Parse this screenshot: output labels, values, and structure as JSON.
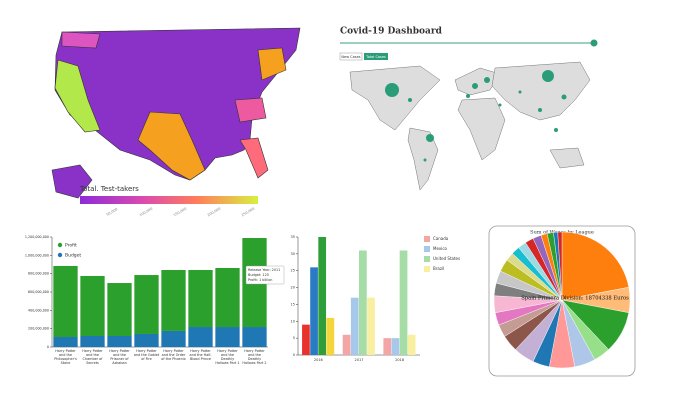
{
  "us_map": {
    "legend_title": "Total. Test-takers",
    "legend_ticks": [
      "50,000",
      "100,000",
      "150,000",
      "200,000",
      "250,000"
    ]
  },
  "covid": {
    "title": "Covid-19 Dashboard",
    "buttons": [
      "New Cases",
      "Total Cases"
    ]
  },
  "chart_data": [
    {
      "type": "stacked_bar",
      "categories": [
        "Harry Potter and the Philosopher's Stone",
        "Harry Potter and the Chamber of Secrets",
        "Harry Potter and the Prisoner of Azkaban",
        "Harry Potter and the Goblet of Fire",
        "Harry Potter and the Order of the Phoenix",
        "Harry Potter and the Half-Blood Prince",
        "Harry Potter and the Deathly Hallows Part 1",
        "Harry Potter and the Deathly Hallows Part 2"
      ],
      "series": [
        {
          "name": "Budget",
          "color": "#1f77b4",
          "values": [
            109000000,
            120000000,
            120000000,
            142000000,
            175000000,
            218000000,
            218000000,
            218000000
          ]
        },
        {
          "name": "Profit",
          "color": "#2ca02c",
          "values": [
            775000000,
            655000000,
            578000000,
            643000000,
            665000000,
            622000000,
            644000000,
            971000000
          ]
        }
      ],
      "ylim": [
        0,
        1200000000
      ],
      "yticks": [
        0,
        {
          "value": 200000000,
          "label": "200,000,000"
        },
        {
          "value": 400000000,
          "label": "400,000,000"
        },
        {
          "value": 600000000,
          "label": "600,000,000"
        },
        {
          "value": 800000000,
          "label": "800,000,000"
        },
        {
          "value": 1000000000,
          "label": "1,000,000,000"
        },
        {
          "value": 1200000000,
          "label": "1,200,000,000"
        }
      ],
      "legend": "top-left",
      "tooltip": [
        "Release Year: 2011",
        "Budget: 125",
        "Profit: 1 billion"
      ]
    },
    {
      "type": "grouped_bar",
      "categories": [
        "2016",
        "2017",
        "2018"
      ],
      "series": [
        {
          "name": "Canada",
          "color": "#f4a6a6",
          "colors": [
            "#e8322c",
            "#f4a6a6",
            "#f4a6a6"
          ],
          "values": [
            9,
            6,
            5
          ]
        },
        {
          "name": "Mexico",
          "color": "#a6c8ea",
          "colors": [
            "#2b7bc4",
            "#a6c8ea",
            "#a6c8ea"
          ],
          "values": [
            26,
            17,
            5
          ]
        },
        {
          "name": "United States",
          "color": "#a6dca6",
          "colors": [
            "#2e9e3a",
            "#a6dca6",
            "#a6dca6"
          ],
          "values": [
            35,
            31,
            31
          ]
        },
        {
          "name": "Brazil",
          "color": "#f8f0a0",
          "colors": [
            "#f5d63a",
            "#f8f0a0",
            "#f8f0a0"
          ],
          "values": [
            11,
            17,
            6
          ]
        }
      ],
      "ylim": [
        0,
        35
      ],
      "yticks": [
        0,
        5,
        10,
        15,
        20,
        25,
        30,
        35
      ],
      "legend": "top-right"
    },
    {
      "type": "pie",
      "title": "Sum of Wages by League",
      "tooltip": "Spain Primera Division: 18704338 Euros",
      "values": [
        22,
        6,
        10,
        4,
        5,
        6,
        4,
        5,
        4,
        3,
        3,
        4,
        3,
        3,
        3,
        2,
        2,
        2,
        2,
        2,
        1.5,
        1.5,
        1,
        1
      ],
      "colors": [
        "#ff7f0e",
        "#ffbb78",
        "#2ca02c",
        "#98df8a",
        "#aec7e8",
        "#ff9896",
        "#1f77b4",
        "#c5b0d5",
        "#8c564b",
        "#c49c94",
        "#e377c2",
        "#f7b6d2",
        "#7f7f7f",
        "#c7c7c7",
        "#bcbd22",
        "#dbdb8d",
        "#17becf",
        "#9edae5",
        "#d62728",
        "#9467bd",
        "#ff7f0e",
        "#2ca02c",
        "#1f77b4",
        "#d62728"
      ]
    }
  ]
}
